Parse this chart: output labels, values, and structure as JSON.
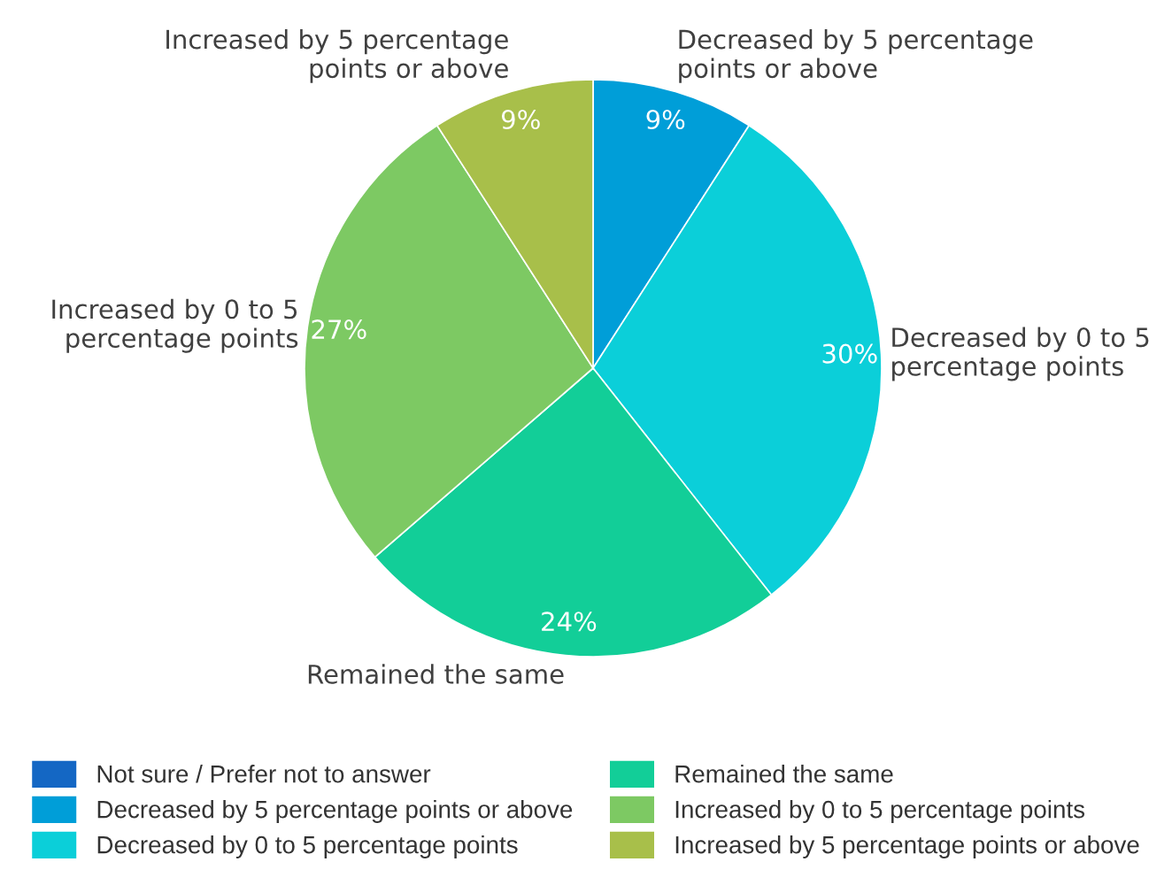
{
  "chart_data": {
    "type": "pie",
    "categories": [
      "Not sure / Prefer not to answer",
      "Decreased by 5 percentage points or above",
      "Decreased by 0 to 5 percentage points",
      "Remained the same",
      "Increased by 0 to 5 percentage points",
      "Increased by 5 percentage points or above"
    ],
    "values": [
      0,
      9,
      30,
      24,
      27,
      9
    ],
    "colors": [
      "#1467c4",
      "#009ed8",
      "#0bcfd9",
      "#12ce98",
      "#7dc963",
      "#a8bf4a"
    ],
    "value_labels": [
      null,
      "9%",
      "30%",
      "24%",
      "27%",
      "9%"
    ],
    "legend": "bottom"
  }
}
